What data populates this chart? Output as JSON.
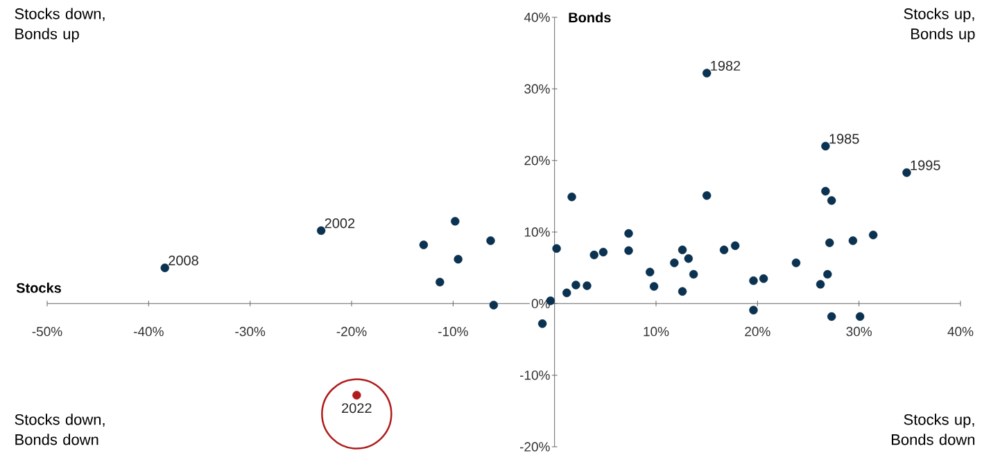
{
  "chart_data": {
    "type": "scatter",
    "xlabel": "Stocks",
    "ylabel": "Bonds",
    "xlim": [
      -50,
      40
    ],
    "ylim": [
      -20,
      40
    ],
    "xticks": [
      {
        "value": -50,
        "label": "-50%"
      },
      {
        "value": -40,
        "label": "-40%"
      },
      {
        "value": -30,
        "label": "-30%"
      },
      {
        "value": -20,
        "label": "-20%"
      },
      {
        "value": -10,
        "label": "-10%"
      },
      {
        "value": 10,
        "label": "10%"
      },
      {
        "value": 20,
        "label": "20%"
      },
      {
        "value": 30,
        "label": "30%"
      },
      {
        "value": 40,
        "label": "40%"
      }
    ],
    "yticks": [
      {
        "value": -20,
        "label": "-20%"
      },
      {
        "value": -10,
        "label": "-10%"
      },
      {
        "value": 0,
        "label": "0%"
      },
      {
        "value": 10,
        "label": "10%"
      },
      {
        "value": 20,
        "label": "20%"
      },
      {
        "value": 30,
        "label": "30%"
      },
      {
        "value": 40,
        "label": "40%"
      }
    ],
    "marker": "circle",
    "grid": false,
    "series": [
      {
        "color": "#0b3251",
        "x": [
          -38.4,
          -23.0,
          -12.9,
          -9.8,
          -11.3,
          -9.5,
          -6.3,
          -6.0,
          -1.2,
          -0.4,
          0.2,
          1.2,
          1.7,
          2.1,
          3.2,
          3.9,
          4.8,
          7.3,
          7.3,
          9.4,
          9.8,
          11.8,
          12.6,
          13.2,
          12.6,
          13.7,
          15.0,
          15.0,
          16.7,
          17.8,
          19.6,
          20.6,
          19.6,
          23.8,
          26.7,
          26.7,
          27.3,
          27.1,
          26.9,
          26.2,
          27.3,
          29.4,
          31.4,
          30.1,
          34.7
        ],
        "values": [
          5.0,
          10.2,
          8.2,
          11.5,
          3.0,
          6.2,
          8.8,
          -0.2,
          -2.8,
          0.4,
          7.7,
          1.5,
          14.9,
          2.6,
          2.5,
          6.8,
          7.2,
          9.8,
          7.4,
          4.4,
          2.4,
          5.7,
          7.5,
          6.3,
          1.7,
          4.1,
          32.2,
          15.1,
          7.5,
          8.1,
          3.2,
          3.5,
          -0.9,
          5.7,
          22.0,
          15.7,
          14.4,
          8.5,
          4.1,
          2.7,
          -1.8,
          8.8,
          9.6,
          -1.8,
          18.3
        ]
      },
      {
        "color": "#b01c1c",
        "x": [
          -19.5
        ],
        "values": [
          -12.8
        ]
      }
    ],
    "annotations": [
      "Stocks down, Bonds up",
      "Stocks up, Bonds up",
      "Stocks down, Bonds down",
      "Stocks up, Bonds down",
      {
        "text": "2008",
        "x": -38.4,
        "y": 5.0
      },
      {
        "text": "2002",
        "x": -23.0,
        "y": 10.2
      },
      {
        "text": "1982",
        "x": 15.0,
        "y": 32.2
      },
      {
        "text": "1985",
        "x": 26.7,
        "y": 22.0
      },
      {
        "text": "1995",
        "x": 34.7,
        "y": 18.3
      },
      {
        "text": "2022",
        "x": -19.5,
        "y": -12.8
      }
    ]
  }
}
